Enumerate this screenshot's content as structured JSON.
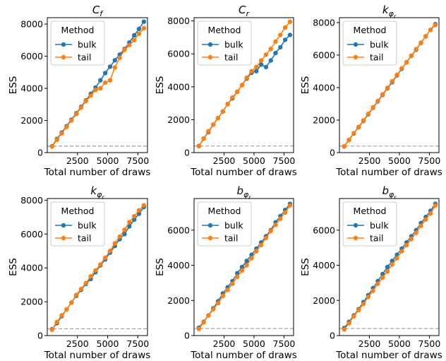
{
  "legend": {
    "title": "Method"
  },
  "colors": {
    "bulk": "#1f77b4",
    "tail": "#ff7f0e",
    "threshold": "#999999"
  },
  "chart_data": [
    {
      "type": "line",
      "title": "C_f",
      "xlabel": "Total number of draws",
      "ylabel": "ESS",
      "xlim": [
        0,
        8300
      ],
      "ylim": [
        0,
        8400
      ],
      "xticks": [
        2500,
        5000,
        7500
      ],
      "yticks": [
        0,
        2000,
        4000,
        6000,
        8000
      ],
      "threshold": 400,
      "legend_position": "upper-left",
      "x": [
        400,
        800,
        1200,
        1600,
        2000,
        2400,
        2800,
        3200,
        3600,
        4000,
        4400,
        4800,
        5200,
        5600,
        6000,
        6400,
        6800,
        7200,
        7600,
        8000
      ],
      "series": [
        {
          "name": "bulk",
          "values": [
            400,
            850,
            1250,
            1650,
            2050,
            2450,
            2850,
            3250,
            3650,
            4050,
            4500,
            4950,
            5350,
            5750,
            6100,
            6450,
            6850,
            7300,
            7700,
            8150
          ]
        },
        {
          "name": "tail",
          "values": [
            380,
            800,
            1200,
            1600,
            2000,
            2400,
            2800,
            3200,
            3550,
            3900,
            4000,
            4350,
            4500,
            5300,
            5900,
            6400,
            6700,
            7000,
            7400,
            7750
          ]
        }
      ]
    },
    {
      "type": "line",
      "title": "C_r",
      "xlabel": "Total number of draws",
      "ylabel": "ESS",
      "xlim": [
        0,
        8300
      ],
      "ylim": [
        0,
        8200
      ],
      "xticks": [
        2500,
        5000,
        7500
      ],
      "yticks": [
        0,
        2000,
        4000,
        6000,
        8000
      ],
      "threshold": 400,
      "legend_position": "upper-left",
      "x": [
        400,
        800,
        1200,
        1600,
        2000,
        2400,
        2800,
        3200,
        3600,
        4000,
        4400,
        4800,
        5200,
        5600,
        6000,
        6400,
        6800,
        7200,
        7600,
        8000
      ],
      "series": [
        {
          "name": "bulk",
          "values": [
            400,
            850,
            1250,
            1700,
            2100,
            2500,
            2950,
            3300,
            3700,
            4100,
            4500,
            4850,
            4950,
            5350,
            5200,
            5600,
            6050,
            6400,
            6850,
            7150
          ]
        },
        {
          "name": "tail",
          "values": [
            400,
            850,
            1300,
            1700,
            2100,
            2500,
            2950,
            3350,
            3700,
            4100,
            4550,
            4950,
            5200,
            5600,
            5950,
            6300,
            6750,
            7150,
            7600,
            7950
          ]
        }
      ]
    },
    {
      "type": "line",
      "title": "k_{φr}",
      "xlabel": "Total number of draws",
      "ylabel": "ESS",
      "xlim": [
        0,
        8300
      ],
      "ylim": [
        0,
        8300
      ],
      "xticks": [
        2500,
        5000,
        7500
      ],
      "yticks": [
        0,
        2000,
        4000,
        6000,
        8000
      ],
      "threshold": 400,
      "legend_position": "upper-left",
      "x": [
        400,
        800,
        1200,
        1600,
        2000,
        2400,
        2800,
        3200,
        3600,
        4000,
        4400,
        4800,
        5200,
        5600,
        6000,
        6400,
        6800,
        7200,
        7600,
        8000
      ],
      "series": [
        {
          "name": "bulk",
          "values": [
            380,
            780,
            1180,
            1560,
            1950,
            2350,
            2760,
            3150,
            3550,
            3950,
            4330,
            4750,
            5150,
            5550,
            5950,
            6330,
            6750,
            7150,
            7550,
            7900
          ]
        },
        {
          "name": "tail",
          "values": [
            390,
            790,
            1200,
            1580,
            1980,
            2380,
            2780,
            3180,
            3580,
            3980,
            4380,
            4780,
            5180,
            5560,
            5960,
            6360,
            6760,
            7150,
            7550,
            7850
          ]
        }
      ]
    },
    {
      "type": "line",
      "title": "k_{φr}",
      "xlabel": "Total number of draws",
      "ylabel": "ESS",
      "xlim": [
        0,
        8300
      ],
      "ylim": [
        0,
        8100
      ],
      "xticks": [
        2500,
        5000,
        7500
      ],
      "yticks": [
        0,
        2000,
        4000,
        6000,
        8000
      ],
      "threshold": 400,
      "legend_position": "upper-left",
      "x": [
        400,
        800,
        1200,
        1600,
        2000,
        2400,
        2800,
        3200,
        3600,
        4000,
        4400,
        4800,
        5200,
        5600,
        6000,
        6400,
        6800,
        7200,
        7600,
        8000
      ],
      "series": [
        {
          "name": "bulk",
          "values": [
            380,
            730,
            1150,
            1550,
            1950,
            2350,
            2700,
            3050,
            3350,
            3750,
            4150,
            4500,
            4900,
            5300,
            5700,
            6000,
            6450,
            6850,
            7200,
            7600
          ]
        },
        {
          "name": "tail",
          "values": [
            350,
            800,
            1200,
            1550,
            1950,
            2400,
            2750,
            3100,
            3500,
            3850,
            4200,
            4600,
            5000,
            5450,
            5850,
            6250,
            6700,
            7050,
            7400,
            7700
          ]
        }
      ]
    },
    {
      "type": "line",
      "title": "b_{φr}",
      "xlabel": "Total number of draws",
      "ylabel": "ESS",
      "xlim": [
        0,
        8300
      ],
      "ylim": [
        0,
        7800
      ],
      "xticks": [
        2500,
        5000,
        7500
      ],
      "yticks": [
        0,
        2000,
        4000,
        6000
      ],
      "threshold": 400,
      "legend_position": "upper-left",
      "x": [
        400,
        800,
        1200,
        1600,
        2000,
        2400,
        2800,
        3200,
        3600,
        4000,
        4400,
        4800,
        5200,
        5600,
        6000,
        6400,
        6800,
        7200,
        7600,
        8000
      ],
      "series": [
        {
          "name": "bulk",
          "values": [
            450,
            780,
            1150,
            1550,
            1950,
            2400,
            2750,
            3100,
            3550,
            3900,
            4250,
            4600,
            4950,
            5300,
            5650,
            6000,
            6450,
            6800,
            7150,
            7500
          ]
        },
        {
          "name": "tail",
          "values": [
            380,
            750,
            1150,
            1500,
            1850,
            2250,
            2600,
            2950,
            3350,
            3700,
            4000,
            4400,
            4800,
            5150,
            5550,
            5950,
            6300,
            6650,
            7000,
            7400
          ]
        }
      ]
    },
    {
      "type": "line",
      "title": "b_{φr}",
      "xlabel": "Total number of draws",
      "ylabel": "ESS",
      "xlim": [
        0,
        8300
      ],
      "ylim": [
        0,
        7800
      ],
      "xticks": [
        2500,
        5000,
        7500
      ],
      "yticks": [
        0,
        2000,
        4000,
        6000
      ],
      "threshold": 400,
      "legend_position": "upper-left",
      "x": [
        400,
        800,
        1200,
        1600,
        2000,
        2400,
        2800,
        3200,
        3600,
        4000,
        4400,
        4800,
        5200,
        5600,
        6000,
        6400,
        6800,
        7200,
        7600,
        8000
      ],
      "series": [
        {
          "name": "bulk",
          "values": [
            430,
            780,
            1150,
            1500,
            1900,
            2300,
            2700,
            3100,
            3500,
            3900,
            4250,
            4600,
            4950,
            5300,
            5650,
            6000,
            6400,
            6750,
            7100,
            7500
          ]
        },
        {
          "name": "tail",
          "values": [
            350,
            700,
            1100,
            1450,
            1800,
            2200,
            2550,
            2950,
            3300,
            3650,
            4050,
            4400,
            4800,
            5150,
            5500,
            5850,
            6250,
            6600,
            6950,
            7400
          ]
        }
      ]
    }
  ]
}
